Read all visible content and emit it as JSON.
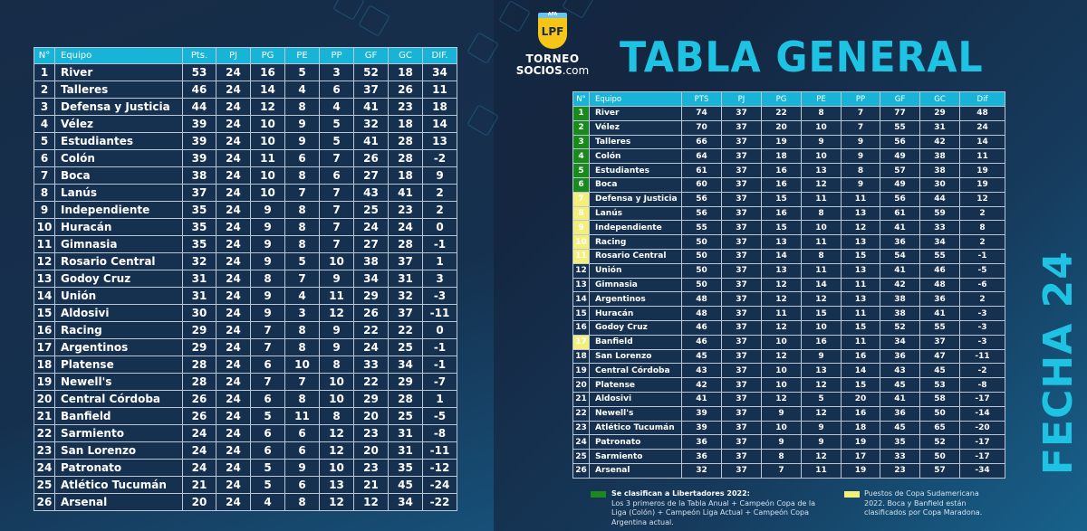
{
  "colors": {
    "accent": "#1ec3e3",
    "header": "#17b4d8",
    "row": "#16304f",
    "libertadores": "#1a8a1e",
    "sudamericana": "#f4ef7a"
  },
  "logo": {
    "badge": "AFA",
    "mark": "LPF",
    "line1": "TORNEO",
    "line2_bold": "SOCIOS",
    "line2_rest": ".com"
  },
  "title": "TABLA GENERAL",
  "fecha": "FECHA 24",
  "left_table": {
    "headers": [
      "N°",
      "Equipo",
      "Pts.",
      "PJ",
      "PG",
      "PE",
      "PP",
      "GF",
      "GC",
      "DIF."
    ],
    "rows": [
      [
        "1",
        "River",
        "53",
        "24",
        "16",
        "5",
        "3",
        "52",
        "18",
        "34"
      ],
      [
        "2",
        "Talleres",
        "46",
        "24",
        "14",
        "4",
        "6",
        "37",
        "26",
        "11"
      ],
      [
        "3",
        "Defensa y Justicia",
        "44",
        "24",
        "12",
        "8",
        "4",
        "41",
        "23",
        "18"
      ],
      [
        "4",
        "Vélez",
        "39",
        "24",
        "10",
        "9",
        "5",
        "32",
        "18",
        "14"
      ],
      [
        "5",
        "Estudiantes",
        "39",
        "24",
        "10",
        "9",
        "5",
        "41",
        "28",
        "13"
      ],
      [
        "6",
        "Colón",
        "39",
        "24",
        "11",
        "6",
        "7",
        "26",
        "28",
        "-2"
      ],
      [
        "7",
        "Boca",
        "38",
        "24",
        "10",
        "8",
        "6",
        "27",
        "18",
        "9"
      ],
      [
        "8",
        "Lanús",
        "37",
        "24",
        "10",
        "7",
        "7",
        "43",
        "41",
        "2"
      ],
      [
        "9",
        "Independiente",
        "35",
        "24",
        "9",
        "8",
        "7",
        "25",
        "23",
        "2"
      ],
      [
        "10",
        "Huracán",
        "35",
        "24",
        "9",
        "8",
        "7",
        "24",
        "24",
        "0"
      ],
      [
        "11",
        "Gimnasia",
        "35",
        "24",
        "9",
        "8",
        "7",
        "27",
        "28",
        "-1"
      ],
      [
        "12",
        "Rosario Central",
        "32",
        "24",
        "9",
        "5",
        "10",
        "38",
        "37",
        "1"
      ],
      [
        "13",
        "Godoy Cruz",
        "31",
        "24",
        "8",
        "7",
        "9",
        "34",
        "31",
        "3"
      ],
      [
        "14",
        "Unión",
        "31",
        "24",
        "9",
        "4",
        "11",
        "29",
        "32",
        "-3"
      ],
      [
        "15",
        "Aldosivi",
        "30",
        "24",
        "9",
        "3",
        "12",
        "26",
        "37",
        "-11"
      ],
      [
        "16",
        "Racing",
        "29",
        "24",
        "7",
        "8",
        "9",
        "22",
        "22",
        "0"
      ],
      [
        "17",
        "Argentinos",
        "29",
        "24",
        "7",
        "8",
        "9",
        "24",
        "25",
        "-1"
      ],
      [
        "18",
        "Platense",
        "28",
        "24",
        "6",
        "10",
        "8",
        "33",
        "34",
        "-1"
      ],
      [
        "19",
        "Newell's",
        "28",
        "24",
        "7",
        "7",
        "10",
        "22",
        "29",
        "-7"
      ],
      [
        "20",
        "Central Córdoba",
        "26",
        "24",
        "6",
        "8",
        "10",
        "29",
        "28",
        "1"
      ],
      [
        "21",
        "Banfield",
        "26",
        "24",
        "5",
        "11",
        "8",
        "20",
        "25",
        "-5"
      ],
      [
        "22",
        "Sarmiento",
        "24",
        "24",
        "6",
        "6",
        "12",
        "23",
        "31",
        "-8"
      ],
      [
        "23",
        "San Lorenzo",
        "24",
        "24",
        "6",
        "6",
        "12",
        "20",
        "31",
        "-11"
      ],
      [
        "24",
        "Patronato",
        "24",
        "24",
        "5",
        "9",
        "10",
        "23",
        "35",
        "-12"
      ],
      [
        "25",
        "Atlético Tucumán",
        "21",
        "24",
        "5",
        "6",
        "13",
        "21",
        "45",
        "-24"
      ],
      [
        "26",
        "Arsenal",
        "20",
        "24",
        "4",
        "8",
        "12",
        "12",
        "34",
        "-22"
      ]
    ]
  },
  "right_table": {
    "headers": [
      "N°",
      "Equipo",
      "PTS",
      "PJ",
      "PG",
      "PE",
      "PP",
      "GF",
      "GC",
      "Dif"
    ],
    "rows": [
      {
        "zone": "green",
        "cells": [
          "1",
          "River",
          "74",
          "37",
          "22",
          "8",
          "7",
          "77",
          "29",
          "48"
        ]
      },
      {
        "zone": "green",
        "cells": [
          "2",
          "Vélez",
          "70",
          "37",
          "20",
          "10",
          "7",
          "55",
          "31",
          "24"
        ]
      },
      {
        "zone": "green",
        "cells": [
          "3",
          "Talleres",
          "66",
          "37",
          "19",
          "9",
          "9",
          "56",
          "42",
          "14"
        ]
      },
      {
        "zone": "green",
        "cells": [
          "4",
          "Colón",
          "64",
          "37",
          "18",
          "10",
          "9",
          "49",
          "38",
          "11"
        ]
      },
      {
        "zone": "green",
        "cells": [
          "5",
          "Estudiantes",
          "61",
          "37",
          "16",
          "13",
          "8",
          "57",
          "38",
          "19"
        ]
      },
      {
        "zone": "green",
        "cells": [
          "6",
          "Boca",
          "60",
          "37",
          "16",
          "12",
          "9",
          "49",
          "30",
          "19"
        ]
      },
      {
        "zone": "yellow",
        "cells": [
          "7",
          "Defensa y Justicia",
          "56",
          "37",
          "15",
          "11",
          "11",
          "56",
          "44",
          "12"
        ]
      },
      {
        "zone": "yellow",
        "cells": [
          "8",
          "Lanús",
          "56",
          "37",
          "16",
          "8",
          "13",
          "61",
          "59",
          "2"
        ]
      },
      {
        "zone": "yellow",
        "cells": [
          "9",
          "Independiente",
          "55",
          "37",
          "15",
          "10",
          "12",
          "41",
          "33",
          "8"
        ]
      },
      {
        "zone": "yellow",
        "cells": [
          "10",
          "Racing",
          "50",
          "37",
          "13",
          "11",
          "13",
          "36",
          "34",
          "2"
        ]
      },
      {
        "zone": "yellow",
        "cells": [
          "11",
          "Rosario Central",
          "50",
          "37",
          "14",
          "8",
          "15",
          "54",
          "55",
          "-1"
        ]
      },
      {
        "zone": "",
        "cells": [
          "12",
          "Unión",
          "50",
          "37",
          "13",
          "11",
          "13",
          "41",
          "46",
          "-5"
        ]
      },
      {
        "zone": "",
        "cells": [
          "13",
          "Gimnasia",
          "50",
          "37",
          "12",
          "14",
          "11",
          "42",
          "48",
          "-6"
        ]
      },
      {
        "zone": "",
        "cells": [
          "14",
          "Argentinos",
          "48",
          "37",
          "12",
          "12",
          "13",
          "38",
          "36",
          "2"
        ]
      },
      {
        "zone": "",
        "cells": [
          "15",
          "Huracán",
          "48",
          "37",
          "11",
          "15",
          "11",
          "38",
          "41",
          "-3"
        ]
      },
      {
        "zone": "",
        "cells": [
          "16",
          "Godoy Cruz",
          "46",
          "37",
          "12",
          "10",
          "15",
          "52",
          "55",
          "-3"
        ]
      },
      {
        "zone": "yellow",
        "cells": [
          "17",
          "Banfield",
          "46",
          "37",
          "10",
          "16",
          "11",
          "34",
          "37",
          "-3"
        ]
      },
      {
        "zone": "",
        "cells": [
          "18",
          "San Lorenzo",
          "45",
          "37",
          "12",
          "9",
          "16",
          "36",
          "47",
          "-11"
        ]
      },
      {
        "zone": "",
        "cells": [
          "19",
          "Central Córdoba",
          "43",
          "37",
          "10",
          "13",
          "14",
          "43",
          "45",
          "-2"
        ]
      },
      {
        "zone": "",
        "cells": [
          "20",
          "Platense",
          "42",
          "37",
          "10",
          "12",
          "15",
          "45",
          "53",
          "-8"
        ]
      },
      {
        "zone": "",
        "cells": [
          "21",
          "Aldosivi",
          "41",
          "37",
          "12",
          "5",
          "20",
          "41",
          "58",
          "-17"
        ]
      },
      {
        "zone": "",
        "cells": [
          "22",
          "Newell's",
          "39",
          "37",
          "9",
          "12",
          "16",
          "36",
          "50",
          "-14"
        ]
      },
      {
        "zone": "",
        "cells": [
          "23",
          "Atlético Tucumán",
          "39",
          "37",
          "10",
          "9",
          "18",
          "45",
          "65",
          "-20"
        ]
      },
      {
        "zone": "",
        "cells": [
          "24",
          "Patronato",
          "36",
          "37",
          "9",
          "9",
          "19",
          "35",
          "52",
          "-17"
        ]
      },
      {
        "zone": "",
        "cells": [
          "25",
          "Sarmiento",
          "36",
          "37",
          "8",
          "12",
          "17",
          "33",
          "50",
          "-17"
        ]
      },
      {
        "zone": "",
        "cells": [
          "26",
          "Arsenal",
          "32",
          "37",
          "7",
          "11",
          "19",
          "23",
          "57",
          "-34"
        ]
      }
    ]
  },
  "legend": {
    "green_title": "Se clasifican a Libertadores 2022:",
    "green_text": "Los 3 primeros de la Tabla Anual  + Campeón Copa de la Liga (Colón) + Campeón Liga Actual + Campeón Copa Argentina actual.",
    "yellow_text": "Puestos de Copa Sudamericana 2022. Boca y Banfield están clasificados por Copa Maradona."
  }
}
